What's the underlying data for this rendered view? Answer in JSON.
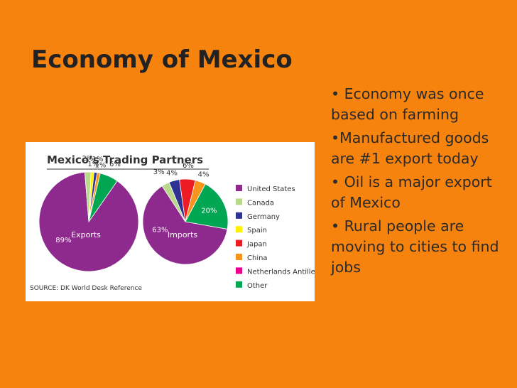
{
  "slide": {
    "title": "Economy of Mexico",
    "bullets": [
      "• Economy was once based on farming",
      "•Manufactured goods are #1 export today",
      "• Oil is a major export of Mexico",
      "• Rural people are moving to cities to find jobs"
    ]
  },
  "figure": {
    "title": "Mexico’s Trading Partners",
    "source": "SOURCE: DK World Desk Reference",
    "legend": [
      {
        "name": "United States",
        "color": "#8e2a8e"
      },
      {
        "name": "Canada",
        "color": "#b8d98c"
      },
      {
        "name": "Germany",
        "color": "#2e3192"
      },
      {
        "name": "Spain",
        "color": "#fff200"
      },
      {
        "name": "Japan",
        "color": "#ed1c24"
      },
      {
        "name": "China",
        "color": "#f7941d"
      },
      {
        "name": "Netherlands Antilles",
        "color": "#ec008c"
      },
      {
        "name": "Other",
        "color": "#00a651"
      }
    ]
  },
  "chart_data": [
    {
      "type": "pie",
      "label": "Exports",
      "categories": [
        "United States",
        "Canada",
        "Spain",
        "Germany",
        "China",
        "Other"
      ],
      "values": [
        89,
        2,
        1,
        1,
        1,
        6
      ],
      "value_labels": [
        "89%",
        "2%",
        "1%",
        "1%",
        "1%",
        "6%"
      ]
    },
    {
      "type": "pie",
      "label": "Imports",
      "categories": [
        "United States",
        "Canada",
        "Germany",
        "Japan",
        "China",
        "Other"
      ],
      "values": [
        63,
        3,
        4,
        6,
        4,
        20
      ],
      "value_labels": [
        "63%",
        "3%",
        "4%",
        "6%",
        "4%",
        "20%"
      ]
    }
  ]
}
